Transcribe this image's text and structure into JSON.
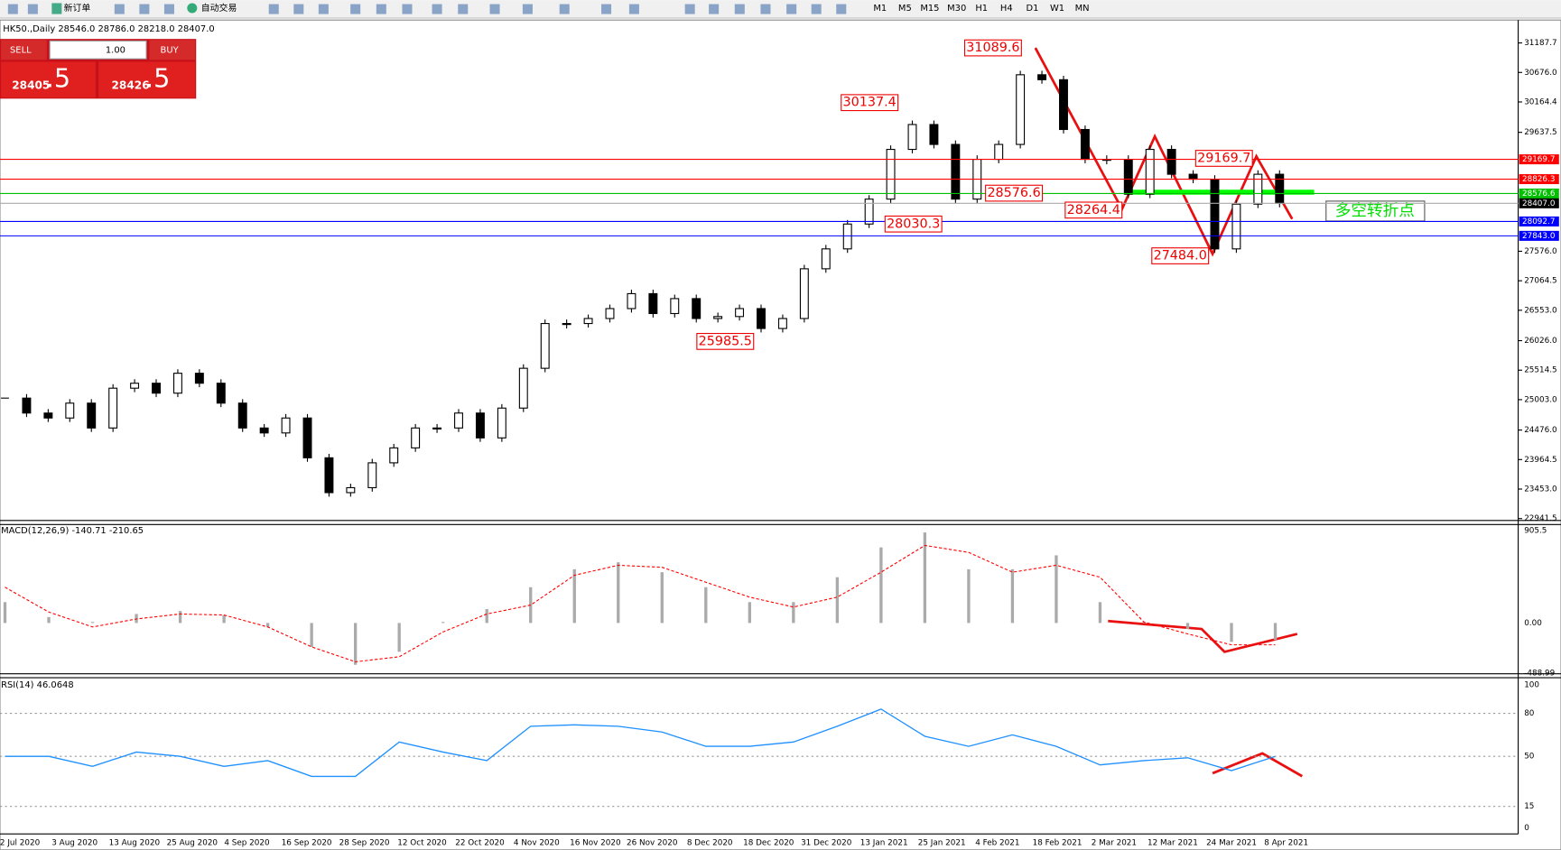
{
  "toolbar": {
    "new_order": "新订单",
    "auto_trading": "自动交易",
    "timeframes": [
      "M1",
      "M5",
      "M15",
      "M30",
      "H1",
      "H4",
      "D1",
      "W1",
      "MN"
    ]
  },
  "trade_panel": {
    "sell": "SELL",
    "lot": "1.00",
    "buy": "BUY",
    "bid_main": "28405",
    "bid_frac": ".5",
    "ask_main": "28426",
    "ask_frac": ".5"
  },
  "time_axis": [
    "2 Jul 2020",
    "3 Aug 2020",
    "13 Aug 2020",
    "25 Aug 2020",
    "4 Sep 2020",
    "16 Sep 2020",
    "28 Sep 2020",
    "12 Oct 2020",
    "22 Oct 2020",
    "4 Nov 2020",
    "16 Nov 2020",
    "26 Nov 2020",
    "8 Dec 2020",
    "18 Dec 2020",
    "31 Dec 2020",
    "13 Jan 2021",
    "25 Jan 2021",
    "4 Feb 2021",
    "18 Feb 2021",
    "2 Mar 2021",
    "12 Mar 2021",
    "24 Mar 2021",
    "8 Apr 2021"
  ],
  "chart_data": [
    {
      "type": "candlestick",
      "title": "HK50.,Daily  28546.0 28786.0 28218.0 28407.0",
      "closes": [
        25030,
        24771,
        24685,
        24943,
        24512,
        25202,
        25288,
        25116,
        25461,
        25288,
        24943,
        24512,
        24426,
        24685,
        23995,
        23391,
        23477,
        23908,
        24167,
        24512,
        24512,
        24771,
        24340,
        24857,
        25547,
        26323,
        26323,
        26410,
        26582,
        26841,
        26496,
        26755,
        26410,
        26444,
        26582,
        26237,
        26410,
        27272,
        27617,
        28048,
        28480,
        29342,
        29773,
        29428,
        28480,
        29170,
        29428,
        30636,
        30550,
        29687,
        29170,
        29170,
        28566,
        29342,
        28911,
        28825,
        27617,
        28393,
        28911,
        28407
      ],
      "ylim": [
        22907.7,
        31550
      ],
      "yticks": [
        31187.7,
        {
          "value": 30676,
          "label": "30676.0"
        },
        30164.4,
        29637.5,
        {
          "value": 27576,
          "label": "27576.0"
        },
        27064.5,
        {
          "value": 26553,
          "label": "26553.0"
        },
        {
          "value": 26026,
          "label": "26026.0"
        },
        25514.5,
        {
          "value": 25003,
          "label": "25003.0"
        },
        {
          "value": 24476,
          "label": "24476.0"
        },
        23964.5,
        {
          "value": 23453,
          "label": "23453.0"
        },
        22941.5
      ],
      "levels": [
        {
          "value": 29169.7,
          "color": "#ff0000"
        },
        {
          "value": 28826.3,
          "color": "#ff0000"
        },
        {
          "value": 28576.6,
          "color": "#00c000"
        },
        {
          "value": 28407,
          "label": "28407.0",
          "color": "#000000"
        },
        {
          "value": 28092.7,
          "color": "#0000ff"
        },
        {
          "value": 27843,
          "label": "27843.0",
          "color": "#0000ff"
        }
      ],
      "annotations": [
        "31089.6",
        "30137.4",
        "28576.6",
        "28264.4",
        "28030.3",
        "25985.5",
        "29169.7",
        "27484.0"
      ],
      "note": "多空转折点"
    },
    {
      "type": "bar",
      "title": "MACD(12,26,9) -140.71 -210.65",
      "series": [
        {
          "color": "#aaaaaa",
          "values": [
            204,
            58,
            10,
            88,
            117,
            78,
            -39,
            -234,
            -409,
            -282,
            10,
            136,
            350,
            526,
            594,
            497,
            350,
            204,
            204,
            448,
            740,
            886,
            526,
            526,
            662,
            204,
            10,
            -58,
            -185,
            -166
          ]
        },
        {
          "color": "#ff0000",
          "values": [
            350,
            107,
            -39,
            39,
            88,
            78,
            -39,
            -234,
            -380,
            -331,
            -88,
            88,
            175,
            467,
            565,
            545,
            399,
            253,
            156,
            253,
            497,
            759,
            691,
            497,
            565,
            448,
            10,
            -107,
            -214,
            -214
          ]
        }
      ],
      "ylim": [
        -497,
        964
      ],
      "yticks": [
        905.5,
        {
          "value": 0,
          "label": "0.00"
        },
        -488.99
      ]
    },
    {
      "type": "line",
      "title": "RSI(14) 46.0648",
      "series": [
        {
          "color": "#1e90ff",
          "values": [
            50,
            50,
            43,
            53,
            50,
            43,
            47,
            36,
            36,
            60,
            53,
            47,
            71,
            72,
            71,
            67,
            57,
            57,
            60,
            71,
            83,
            64,
            57,
            65,
            57,
            44,
            47,
            49,
            40,
            50
          ]
        }
      ],
      "ylim": [
        -4.2,
        104.9
      ],
      "yticks": [
        100,
        80,
        50,
        15,
        0
      ]
    }
  ]
}
